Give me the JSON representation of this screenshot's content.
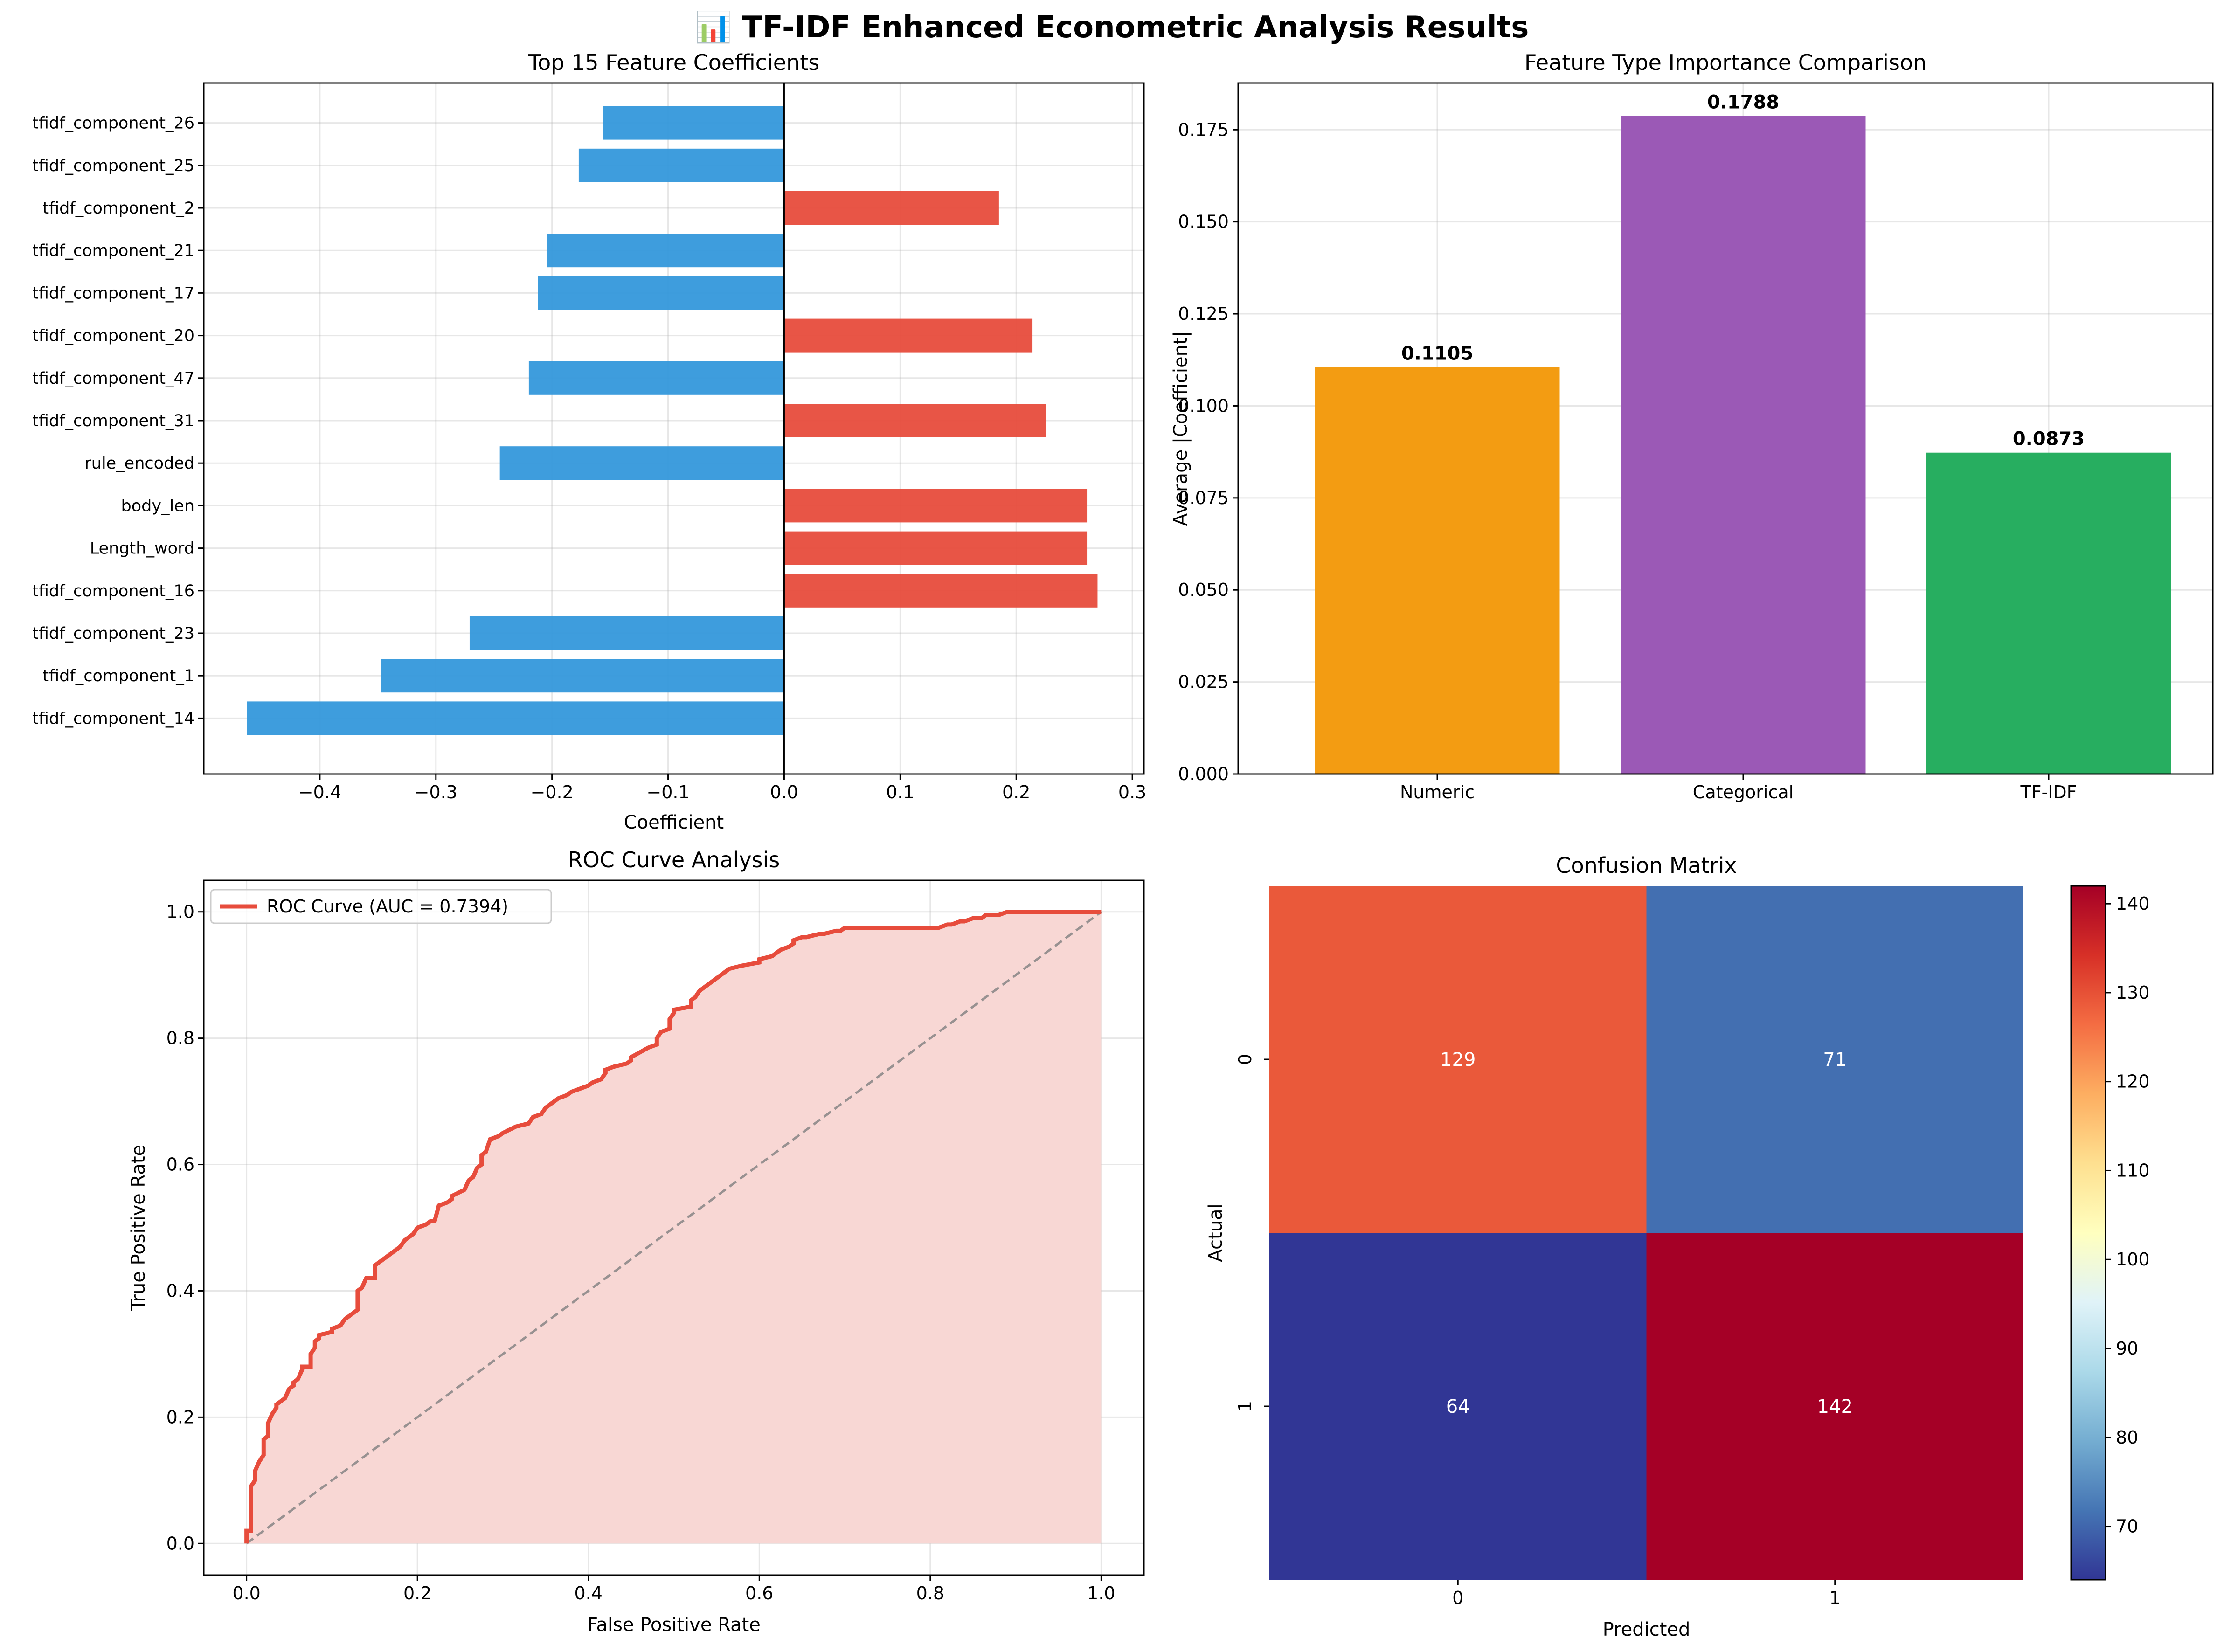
{
  "figure": {
    "suptitle": "📊 TF-IDF Enhanced Econometric Analysis Results"
  },
  "chart_data": [
    {
      "type": "bar",
      "orientation": "horizontal",
      "title": "Top 15 Feature Coefficients",
      "xlabel": "Coefficient",
      "ylabel": "",
      "xlim": [
        -0.5,
        0.31
      ],
      "xticks": [
        -0.4,
        -0.3,
        -0.2,
        -0.1,
        0.0,
        0.1,
        0.2,
        0.3
      ],
      "xtick_labels": [
        "−0.4",
        "−0.3",
        "−0.2",
        "−0.1",
        "0.0",
        "0.1",
        "0.2",
        "0.3"
      ],
      "grid": true,
      "colors": {
        "positive": "#e74c3c",
        "negative": "#3498db"
      },
      "categories": [
        "tfidf_component_14",
        "tfidf_component_1",
        "tfidf_component_23",
        "tfidf_component_16",
        "Length_word",
        "body_len",
        "rule_encoded",
        "tfidf_component_31",
        "tfidf_component_47",
        "tfidf_component_20",
        "tfidf_component_17",
        "tfidf_component_21",
        "tfidf_component_2",
        "tfidf_component_25",
        "tfidf_component_26"
      ],
      "values": [
        -0.463,
        -0.347,
        -0.271,
        0.27,
        0.261,
        0.261,
        -0.245,
        0.226,
        -0.22,
        0.214,
        -0.212,
        -0.204,
        0.185,
        -0.177,
        -0.156
      ]
    },
    {
      "type": "bar",
      "title": "Feature Type Importance Comparison",
      "xlabel": "",
      "ylabel": "Average |Coefficient|",
      "ylim": [
        0,
        0.1877
      ],
      "yticks": [
        0.0,
        0.025,
        0.05,
        0.075,
        0.1,
        0.125,
        0.15,
        0.175
      ],
      "ytick_labels": [
        "0.000",
        "0.025",
        "0.050",
        "0.075",
        "0.100",
        "0.125",
        "0.150",
        "0.175"
      ],
      "grid": true,
      "categories": [
        "Numeric",
        "Categorical",
        "TF-IDF"
      ],
      "values": [
        0.1105,
        0.1788,
        0.0873
      ],
      "value_labels": [
        "0.1105",
        "0.1788",
        "0.0873"
      ],
      "colors": [
        "#f39c12",
        "#9b59b6",
        "#27ae60"
      ]
    },
    {
      "type": "line",
      "title": "ROC Curve Analysis",
      "xlabel": "False Positive Rate",
      "ylabel": "True Positive Rate",
      "xlim": [
        -0.05,
        1.05
      ],
      "ylim": [
        -0.05,
        1.05
      ],
      "xticks": [
        0.0,
        0.2,
        0.4,
        0.6,
        0.8,
        1.0
      ],
      "xtick_labels": [
        "0.0",
        "0.2",
        "0.4",
        "0.6",
        "0.8",
        "1.0"
      ],
      "yticks": [
        0.0,
        0.2,
        0.4,
        0.6,
        0.8,
        1.0
      ],
      "ytick_labels": [
        "0.0",
        "0.2",
        "0.4",
        "0.6",
        "0.8",
        "1.0"
      ],
      "grid": true,
      "legend_position": "upper-left",
      "series": [
        {
          "name": "ROC Curve (AUC = 0.7394)",
          "color": "#e74c3c",
          "fill": "#f8d7d4",
          "x": [
            0.0,
            0.0,
            0.005,
            0.005,
            0.01,
            0.01,
            0.015,
            0.02,
            0.02,
            0.025,
            0.025,
            0.03,
            0.035,
            0.035,
            0.045,
            0.05,
            0.055,
            0.055,
            0.06,
            0.065,
            0.065,
            0.075,
            0.075,
            0.08,
            0.08,
            0.085,
            0.085,
            0.1,
            0.1,
            0.11,
            0.115,
            0.125,
            0.13,
            0.13,
            0.135,
            0.14,
            0.15,
            0.15,
            0.155,
            0.16,
            0.165,
            0.175,
            0.18,
            0.185,
            0.19,
            0.195,
            0.2,
            0.21,
            0.215,
            0.22,
            0.225,
            0.235,
            0.24,
            0.24,
            0.255,
            0.26,
            0.265,
            0.27,
            0.275,
            0.275,
            0.28,
            0.285,
            0.295,
            0.3,
            0.315,
            0.33,
            0.335,
            0.345,
            0.35,
            0.36,
            0.365,
            0.375,
            0.38,
            0.39,
            0.4,
            0.405,
            0.415,
            0.42,
            0.42,
            0.43,
            0.445,
            0.45,
            0.45,
            0.47,
            0.48,
            0.48,
            0.485,
            0.495,
            0.495,
            0.5,
            0.5,
            0.52,
            0.52,
            0.525,
            0.53,
            0.54,
            0.545,
            0.55,
            0.555,
            0.56,
            0.565,
            0.58,
            0.6,
            0.6,
            0.615,
            0.62,
            0.625,
            0.635,
            0.64,
            0.64,
            0.65,
            0.655,
            0.67,
            0.675,
            0.69,
            0.695,
            0.7,
            0.71,
            0.72,
            0.74,
            0.81,
            0.82,
            0.825,
            0.835,
            0.84,
            0.85,
            0.86,
            0.865,
            0.88,
            0.89,
            0.89,
            0.9,
            0.92,
            0.94,
            0.96,
            1.0
          ],
          "y": [
            0.0,
            0.02,
            0.02,
            0.09,
            0.1,
            0.115,
            0.13,
            0.14,
            0.165,
            0.17,
            0.19,
            0.205,
            0.215,
            0.22,
            0.23,
            0.245,
            0.25,
            0.255,
            0.26,
            0.275,
            0.28,
            0.28,
            0.3,
            0.31,
            0.32,
            0.325,
            0.33,
            0.335,
            0.34,
            0.345,
            0.355,
            0.365,
            0.37,
            0.4,
            0.405,
            0.42,
            0.42,
            0.44,
            0.445,
            0.45,
            0.455,
            0.465,
            0.47,
            0.48,
            0.485,
            0.49,
            0.5,
            0.505,
            0.51,
            0.51,
            0.535,
            0.54,
            0.545,
            0.55,
            0.56,
            0.575,
            0.58,
            0.595,
            0.6,
            0.615,
            0.62,
            0.64,
            0.645,
            0.65,
            0.66,
            0.665,
            0.675,
            0.68,
            0.69,
            0.7,
            0.705,
            0.71,
            0.715,
            0.72,
            0.725,
            0.73,
            0.735,
            0.745,
            0.75,
            0.755,
            0.76,
            0.765,
            0.77,
            0.785,
            0.79,
            0.8,
            0.81,
            0.815,
            0.83,
            0.84,
            0.845,
            0.85,
            0.86,
            0.865,
            0.875,
            0.885,
            0.89,
            0.895,
            0.9,
            0.905,
            0.91,
            0.915,
            0.92,
            0.925,
            0.93,
            0.935,
            0.94,
            0.945,
            0.95,
            0.955,
            0.96,
            0.96,
            0.965,
            0.965,
            0.97,
            0.97,
            0.975,
            0.975,
            0.975,
            0.975,
            0.975,
            0.98,
            0.98,
            0.985,
            0.985,
            0.99,
            0.99,
            0.995,
            0.995,
            1.0,
            1.0,
            1.0,
            1.0,
            1.0,
            1.0,
            1.0
          ]
        },
        {
          "name": "",
          "color": "#808080",
          "style": "dashed",
          "x": [
            0,
            1
          ],
          "y": [
            0,
            1
          ]
        }
      ]
    },
    {
      "type": "heatmap",
      "title": "Confusion Matrix",
      "xlabel": "Predicted",
      "ylabel": "Actual",
      "x_categories": [
        "0",
        "1"
      ],
      "y_categories": [
        "0",
        "1"
      ],
      "values": [
        [
          129,
          71
        ],
        [
          64,
          142
        ]
      ],
      "colormap": "RdYlBu_r",
      "colorbar": {
        "range": [
          64,
          142
        ],
        "ticks": [
          70,
          80,
          90,
          100,
          110,
          120,
          130,
          140
        ],
        "tick_labels": [
          "70",
          "80",
          "90",
          "100",
          "110",
          "120",
          "130",
          "140"
        ]
      }
    }
  ]
}
